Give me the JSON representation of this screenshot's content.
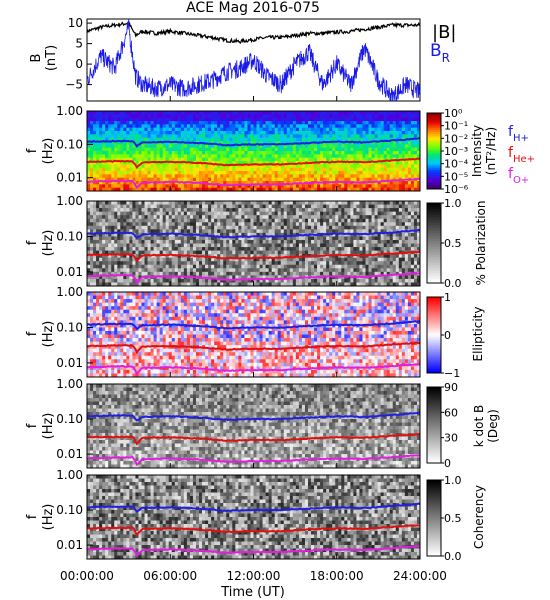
{
  "title": "ACE Mag 2016-075",
  "colors": {
    "bmag": "#000000",
    "br": "#1a1ae6",
    "fH": "#2020e0",
    "fHe": "#e01010",
    "fO": "#e020e0"
  },
  "chart_data": [
    {
      "type": "line",
      "panel": "field",
      "ylabel_main": "B",
      "ylabel_unit": "(nT)",
      "ylim": [
        -9,
        11
      ],
      "yticks": [
        "10",
        "5",
        "0",
        "-5"
      ],
      "ytick_values": [
        10,
        5,
        0,
        -5
      ],
      "legend": {
        "b_total": "|B|",
        "b_r_main": "B",
        "b_r_sub": "R"
      },
      "x_hours": [
        0,
        1,
        2,
        3,
        3.5,
        4,
        5,
        6,
        7,
        8,
        9,
        10,
        11,
        12,
        13,
        14,
        15,
        16,
        17,
        18,
        19,
        20,
        21,
        22,
        23,
        24
      ],
      "series": [
        {
          "name": "|B|",
          "values": [
            8,
            9,
            9.5,
            10,
            7,
            8,
            7.5,
            8,
            7.5,
            7,
            6.5,
            5.8,
            5.5,
            6,
            6.5,
            6.5,
            7,
            7.5,
            7.5,
            7.8,
            8,
            8.5,
            9,
            9.5,
            9.5,
            9.5
          ]
        },
        {
          "name": "B_R",
          "values": [
            -4,
            2,
            -1,
            9,
            -3,
            -5,
            -6,
            -5,
            -6,
            -5,
            -4,
            -2,
            -1,
            1,
            -3,
            -5,
            0,
            3,
            -5,
            0,
            -5,
            4,
            -4,
            -8,
            -5,
            -7
          ]
        }
      ]
    },
    {
      "type": "heatmap",
      "panel": "intensity",
      "ylabel_main": "f",
      "ylabel_unit": "(Hz)",
      "yticks": [
        "1.00",
        "0.10",
        "0.01"
      ],
      "colorbar_label": "Intensity",
      "colorbar_unit": "(nT²/Hz)",
      "colorbar_ticks": [
        "10⁰",
        "10⁻¹",
        "10⁻²",
        "10⁻³",
        "10⁻⁴",
        "10⁻⁵",
        "10⁻⁶"
      ],
      "legend": [
        {
          "main": "f",
          "sub": "H+"
        },
        {
          "main": "f",
          "sub": "He+"
        },
        {
          "main": "f",
          "sub": "O+"
        }
      ]
    },
    {
      "type": "heatmap",
      "panel": "polarization",
      "ylabel_main": "f",
      "ylabel_unit": "(Hz)",
      "yticks": [
        "1.00",
        "0.10",
        "0.01"
      ],
      "colorbar_label": "% Polarization",
      "colorbar_ticks": [
        "1.0",
        "0.5",
        "0.0"
      ]
    },
    {
      "type": "heatmap",
      "panel": "ellipticity",
      "ylabel_main": "f",
      "ylabel_unit": "(Hz)",
      "yticks": [
        "1.00",
        "0.10",
        "0.01"
      ],
      "colorbar_label": "Ellipticity",
      "colorbar_ticks": [
        "1",
        "0",
        "−1"
      ]
    },
    {
      "type": "heatmap",
      "panel": "kdotb",
      "ylabel_main": "f",
      "ylabel_unit": "(Hz)",
      "yticks": [
        "1.00",
        "0.10",
        "0.01"
      ],
      "colorbar_label": "k dot B",
      "colorbar_unit": "(Deg)",
      "colorbar_ticks": [
        "90",
        "60",
        "30",
        "0"
      ]
    },
    {
      "type": "heatmap",
      "panel": "coherency",
      "ylabel_main": "f",
      "ylabel_unit": "(Hz)",
      "yticks": [
        "1.00",
        "0.10",
        "0.01"
      ],
      "colorbar_label": "Coherency",
      "colorbar_ticks": [
        "1.0",
        "0.5",
        "0.0"
      ]
    }
  ],
  "gyrofrequency_hz": {
    "x_hours": [
      0,
      2,
      3.3,
      3.6,
      4,
      6,
      8,
      10,
      12,
      14,
      16,
      18,
      20,
      22,
      24
    ],
    "H": [
      0.12,
      0.125,
      0.125,
      0.09,
      0.115,
      0.12,
      0.11,
      0.095,
      0.1,
      0.1,
      0.11,
      0.12,
      0.115,
      0.13,
      0.15
    ],
    "He": [
      0.03,
      0.031,
      0.031,
      0.02,
      0.029,
      0.03,
      0.028,
      0.024,
      0.025,
      0.025,
      0.028,
      0.03,
      0.029,
      0.033,
      0.037
    ],
    "O": [
      0.0075,
      0.008,
      0.008,
      0.005,
      0.0072,
      0.0075,
      0.007,
      0.006,
      0.0063,
      0.0063,
      0.007,
      0.0075,
      0.0072,
      0.0082,
      0.0093
    ]
  },
  "xaxis": {
    "ticks": [
      "00:00:00",
      "06:00:00",
      "12:00:00",
      "18:00:00",
      "24:00:00"
    ],
    "tick_hours": [
      0,
      6,
      12,
      18,
      24
    ],
    "label": "Time (UT)"
  }
}
